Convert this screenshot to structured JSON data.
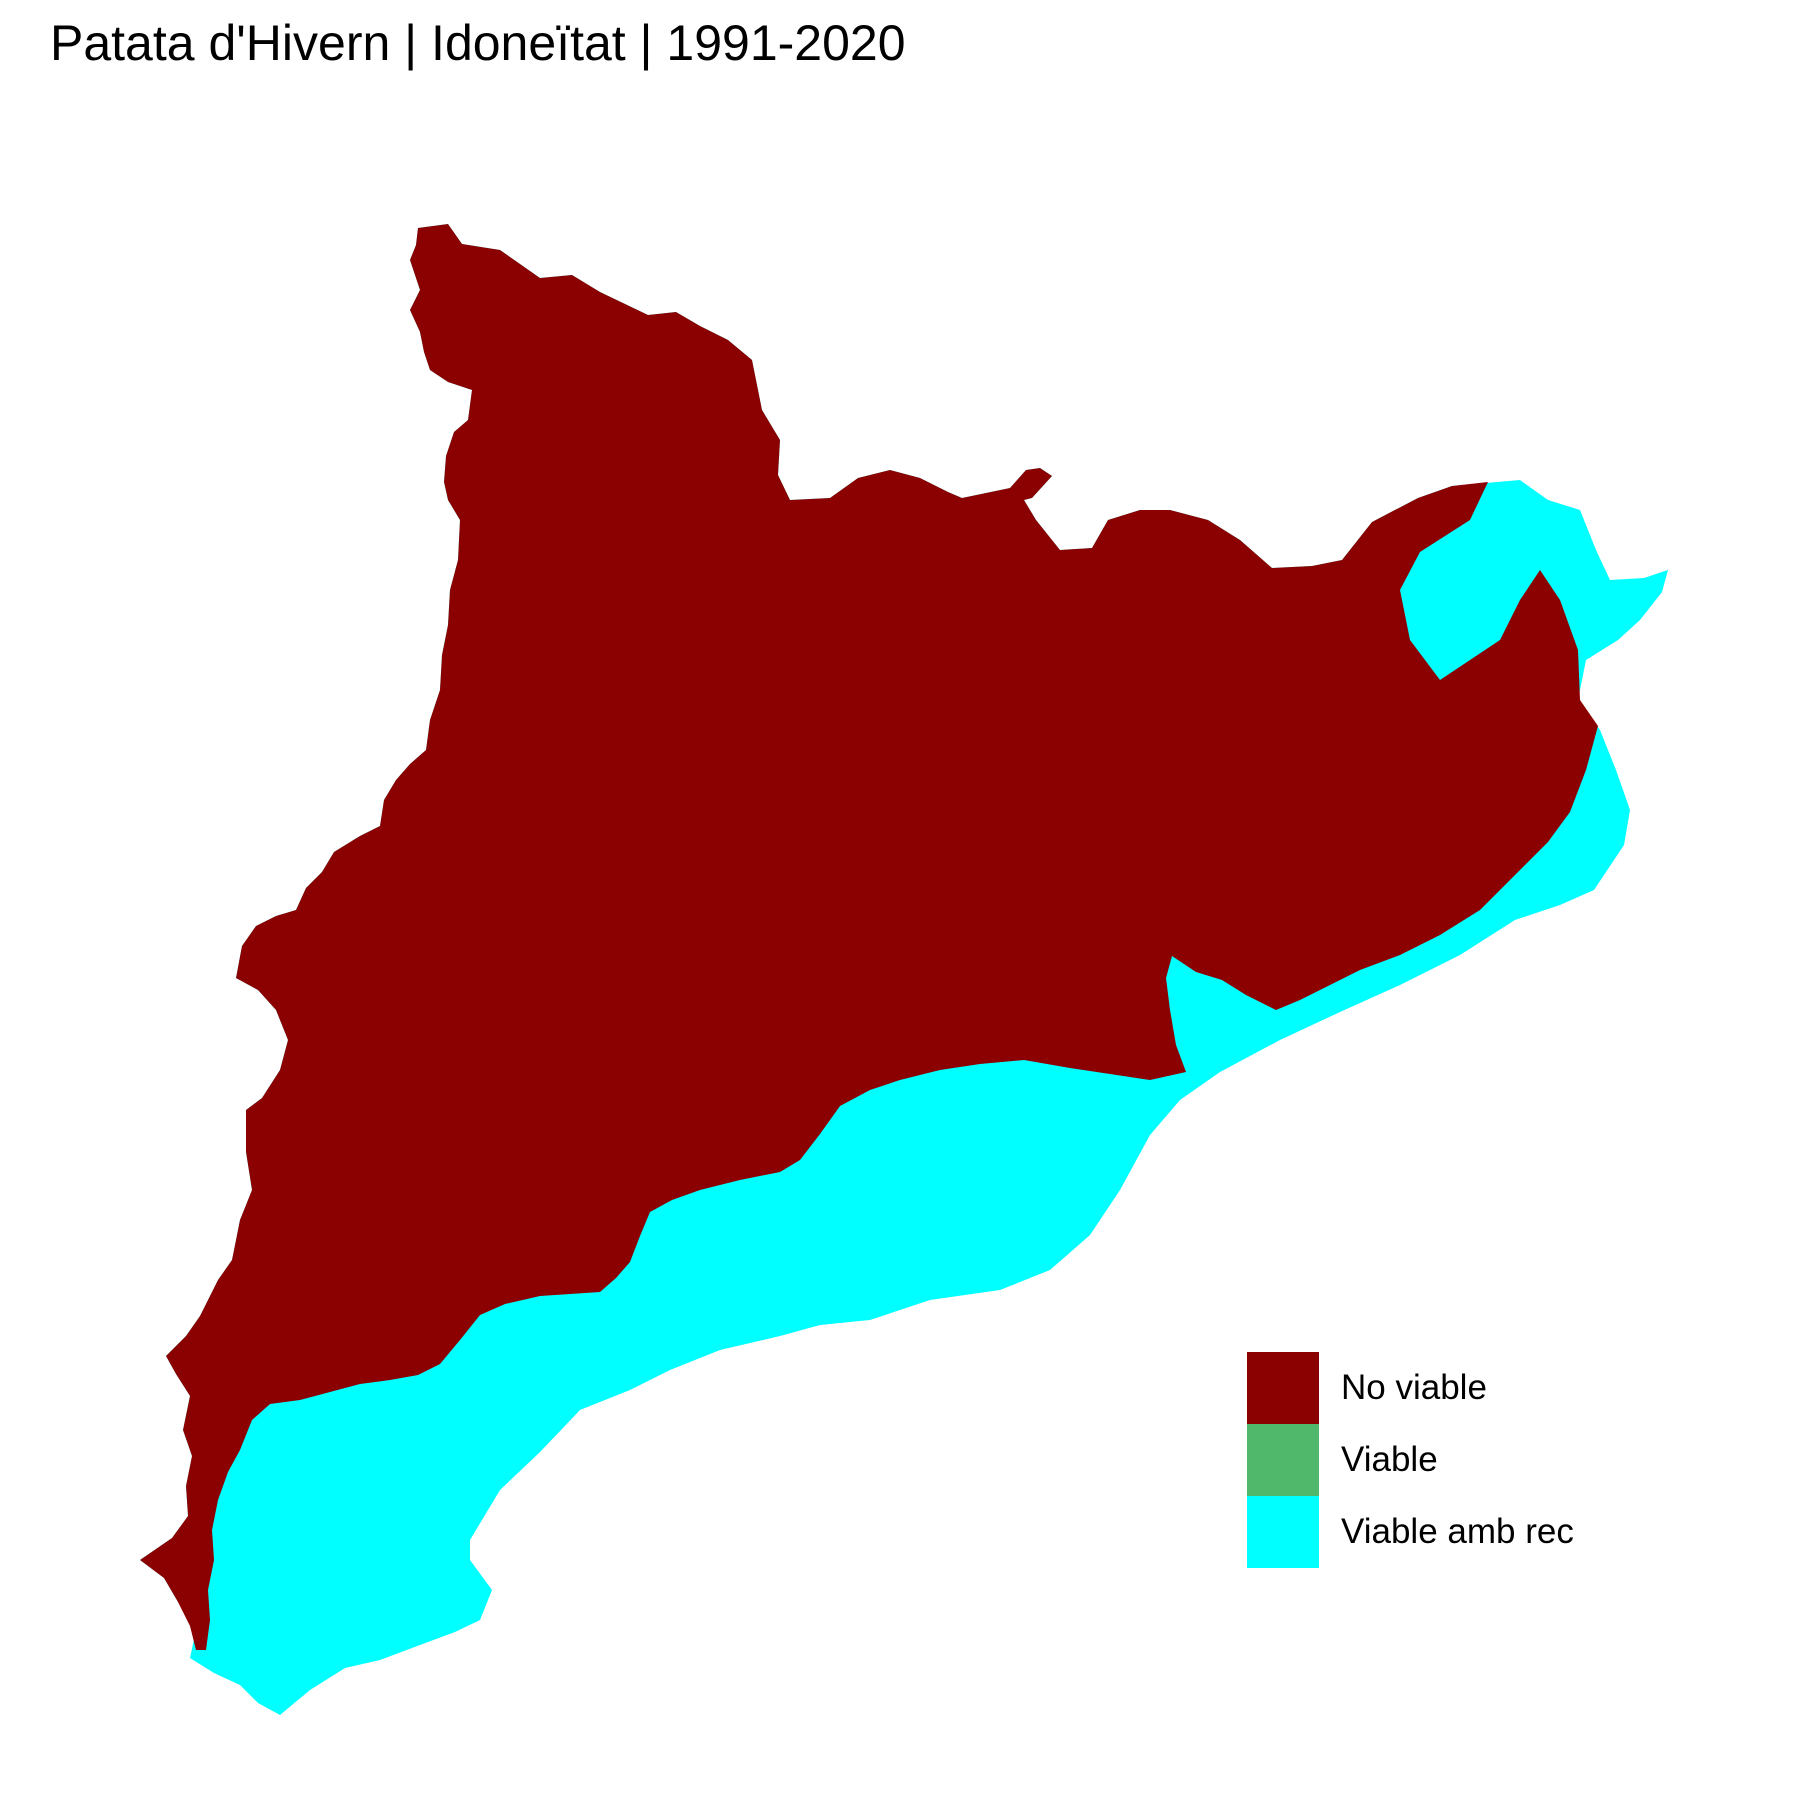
{
  "title": "Patata d'Hivern | Idoneïtat | 1991-2020",
  "legend": [
    {
      "label": "No viable",
      "color": "#8B0000"
    },
    {
      "label": "Viable",
      "color": "#4FB86A"
    },
    {
      "label": "Viable amb rec",
      "color": "#00FFFF"
    }
  ],
  "colors": {
    "no_viable": "#8B0000",
    "viable_amb_rec": "#00FFFF",
    "background": "#FFFFFF"
  }
}
